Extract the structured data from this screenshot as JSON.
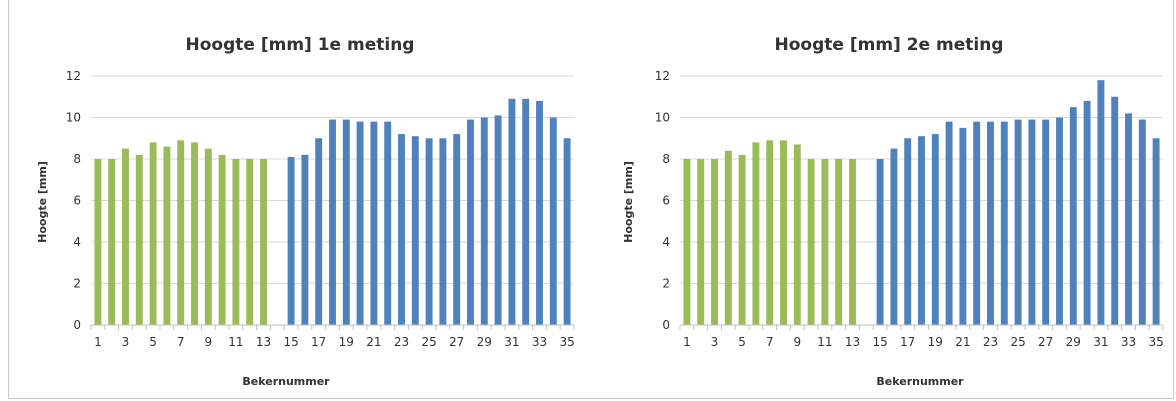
{
  "chart_data": [
    {
      "type": "bar",
      "title": "Hoogte [mm] 1e meting",
      "xlabel": "Bekernummer",
      "ylabel": "Hoogte [mm]",
      "ylim": [
        0,
        12
      ],
      "yticks": [
        0,
        2,
        4,
        6,
        8,
        10,
        12
      ],
      "grid": true,
      "legend": "none",
      "colors": {
        "group_a": "#9BBB59",
        "group_b": "#4F81BD",
        "grid": "#d9d9d9",
        "axis": "#bfbfbf"
      },
      "categories": [
        "1",
        "2",
        "3",
        "4",
        "5",
        "6",
        "7",
        "8",
        "9",
        "10",
        "11",
        "12",
        "13",
        "14",
        "15",
        "16",
        "17",
        "18",
        "19",
        "20",
        "21",
        "22",
        "23",
        "24",
        "25",
        "26",
        "27",
        "28",
        "29",
        "30",
        "31",
        "32",
        "33",
        "34",
        "35"
      ],
      "xtick_labels": [
        "1",
        "3",
        "5",
        "7",
        "9",
        "11",
        "13",
        "15",
        "17",
        "19",
        "21",
        "23",
        "25",
        "27",
        "29",
        "31",
        "33",
        "35"
      ],
      "values": [
        8.0,
        8.0,
        8.5,
        8.2,
        8.8,
        8.6,
        8.9,
        8.8,
        8.5,
        8.2,
        8.0,
        8.0,
        8.0,
        null,
        8.1,
        8.2,
        9.0,
        9.9,
        9.9,
        9.8,
        9.8,
        9.8,
        9.2,
        9.1,
        9.0,
        9.0,
        9.2,
        9.9,
        10.0,
        10.1,
        10.9,
        10.9,
        10.8,
        10.0,
        9.0
      ],
      "color_groups": [
        "a",
        "a",
        "a",
        "a",
        "a",
        "a",
        "a",
        "a",
        "a",
        "a",
        "a",
        "a",
        "a",
        "a",
        "b",
        "b",
        "b",
        "b",
        "b",
        "b",
        "b",
        "b",
        "b",
        "b",
        "b",
        "b",
        "b",
        "b",
        "b",
        "b",
        "b",
        "b",
        "b",
        "b",
        "b"
      ]
    },
    {
      "type": "bar",
      "title": "Hoogte [mm] 2e meting",
      "xlabel": "Bekernummer",
      "ylabel": "Hoogte [mm]",
      "ylim": [
        0,
        12
      ],
      "yticks": [
        0,
        2,
        4,
        6,
        8,
        10,
        12
      ],
      "grid": true,
      "legend": "none",
      "colors": {
        "group_a": "#9BBB59",
        "group_b": "#4F81BD",
        "grid": "#d9d9d9",
        "axis": "#bfbfbf"
      },
      "categories": [
        "1",
        "2",
        "3",
        "4",
        "5",
        "6",
        "7",
        "8",
        "9",
        "10",
        "11",
        "12",
        "13",
        "14",
        "15",
        "16",
        "17",
        "18",
        "19",
        "20",
        "21",
        "22",
        "23",
        "24",
        "25",
        "26",
        "27",
        "28",
        "29",
        "30",
        "31",
        "32",
        "33",
        "34",
        "35"
      ],
      "xtick_labels": [
        "1",
        "3",
        "5",
        "7",
        "9",
        "11",
        "13",
        "15",
        "17",
        "19",
        "21",
        "23",
        "25",
        "27",
        "29",
        "31",
        "33",
        "35"
      ],
      "values": [
        8.0,
        8.0,
        8.0,
        8.4,
        8.2,
        8.8,
        8.9,
        8.9,
        8.7,
        8.0,
        8.0,
        8.0,
        8.0,
        null,
        8.0,
        8.5,
        9.0,
        9.1,
        9.2,
        9.8,
        9.5,
        9.8,
        9.8,
        9.8,
        9.9,
        9.9,
        9.9,
        10.0,
        10.5,
        10.8,
        11.8,
        11.0,
        10.2,
        9.9,
        9.0
      ],
      "color_groups": [
        "a",
        "a",
        "a",
        "a",
        "a",
        "a",
        "a",
        "a",
        "a",
        "a",
        "a",
        "a",
        "a",
        "a",
        "b",
        "b",
        "b",
        "b",
        "b",
        "b",
        "b",
        "b",
        "b",
        "b",
        "b",
        "b",
        "b",
        "b",
        "b",
        "b",
        "b",
        "b",
        "b",
        "b",
        "b"
      ]
    }
  ]
}
